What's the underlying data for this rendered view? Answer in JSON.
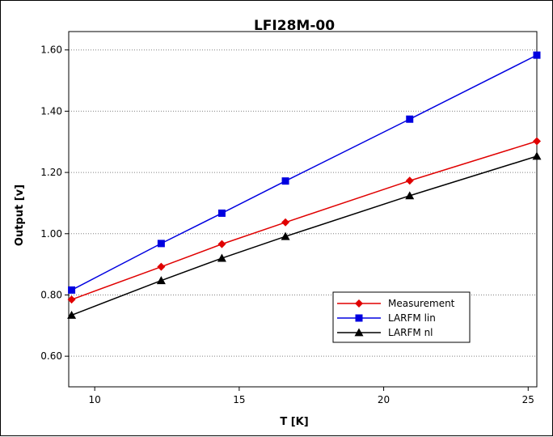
{
  "chart_data": {
    "type": "line",
    "title": "LFI28M-00",
    "xlabel": "T [K]",
    "ylabel": "Output [v]",
    "xlim": [
      9.1,
      25.3
    ],
    "ylim": [
      0.5,
      1.66
    ],
    "x_ticks": [
      10,
      15,
      20,
      25
    ],
    "x_tick_labels": [
      "10",
      "15",
      "20",
      "25"
    ],
    "y_ticks": [
      0.6,
      0.8,
      1.0,
      1.2,
      1.4,
      1.6
    ],
    "y_tick_labels": [
      "0.60",
      "0.80",
      "1.00",
      "1.20",
      "1.40",
      "1.60"
    ],
    "grid": "horizontal dotted",
    "legend_position": "bottom-right",
    "x": [
      9.2,
      12.3,
      14.4,
      16.6,
      20.9,
      25.3
    ],
    "series": [
      {
        "name": "Measurement",
        "color": "#e00000",
        "marker": "diamond",
        "values": [
          0.785,
          0.892,
          0.966,
          1.037,
          1.173,
          1.302
        ]
      },
      {
        "name": "LARFM lin",
        "color": "#0000e0",
        "marker": "square",
        "values": [
          0.816,
          0.968,
          1.067,
          1.172,
          1.374,
          1.583
        ]
      },
      {
        "name": "LARFM nl",
        "color": "#000000",
        "marker": "triangle",
        "values": [
          0.734,
          0.847,
          0.92,
          0.991,
          1.124,
          1.253
        ]
      }
    ]
  }
}
